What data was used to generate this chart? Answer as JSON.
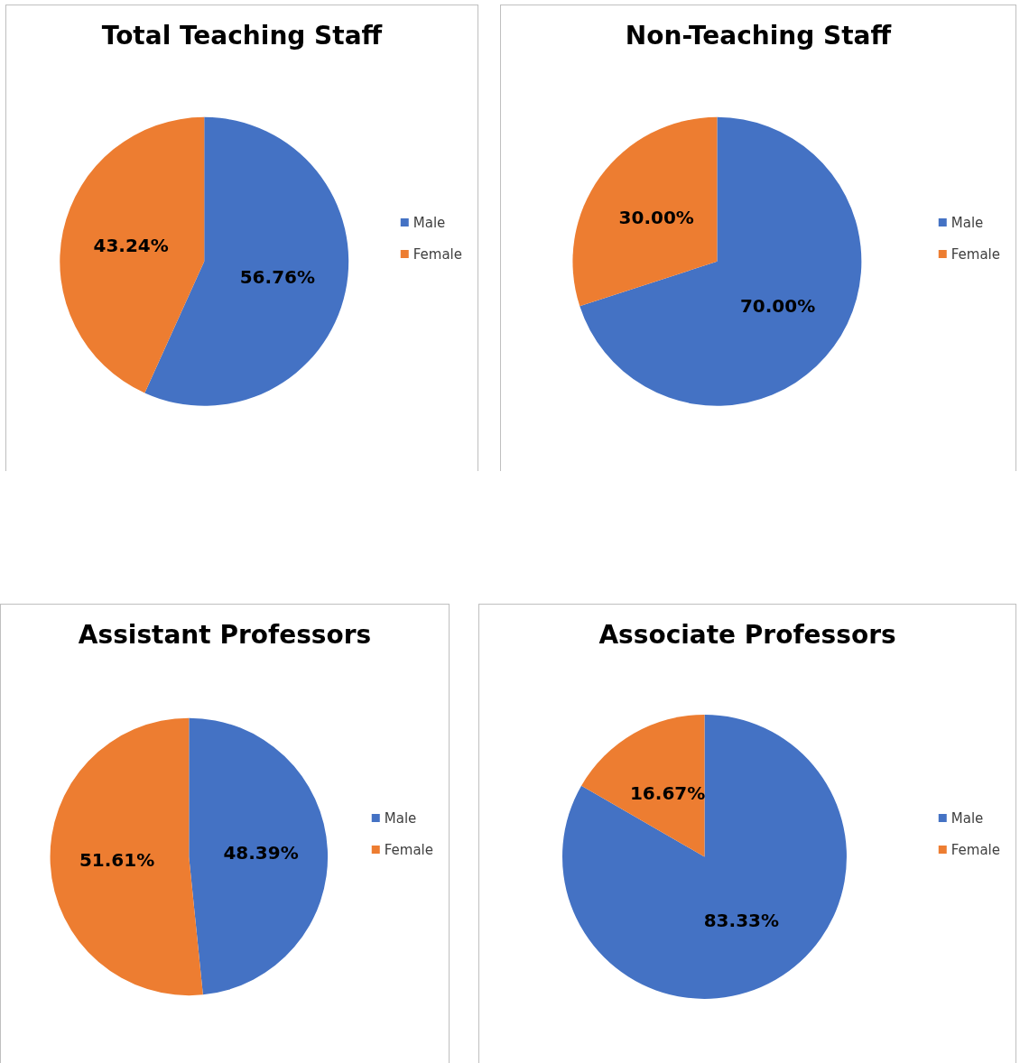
{
  "chart_data": [
    {
      "type": "pie",
      "title": "Total Teaching Staff",
      "categories": [
        "Male",
        "Female"
      ],
      "values": [
        56.76,
        43.24
      ],
      "colors": [
        "#4472c4",
        "#ed7d31"
      ],
      "value_labels": [
        "56.76%",
        "43.24%"
      ],
      "legend": "right"
    },
    {
      "type": "pie",
      "title": "Non-Teaching Staff",
      "categories": [
        "Male",
        "Female"
      ],
      "values": [
        70.0,
        30.0
      ],
      "colors": [
        "#4472c4",
        "#ed7d31"
      ],
      "value_labels": [
        "70.00%",
        "30.00%"
      ],
      "legend": "right"
    },
    {
      "type": "pie",
      "title": "Assistant Professors",
      "categories": [
        "Male",
        "Female"
      ],
      "values": [
        48.39,
        51.61
      ],
      "colors": [
        "#4472c4",
        "#ed7d31"
      ],
      "value_labels": [
        "48.39%",
        "51.61%"
      ],
      "legend": "right"
    },
    {
      "type": "pie",
      "title": "Associate Professors",
      "categories": [
        "Male",
        "Female"
      ],
      "values": [
        83.33,
        16.67
      ],
      "colors": [
        "#4472c4",
        "#ed7d31"
      ],
      "value_labels": [
        "83.33%",
        "16.67%"
      ],
      "legend": "right"
    }
  ]
}
